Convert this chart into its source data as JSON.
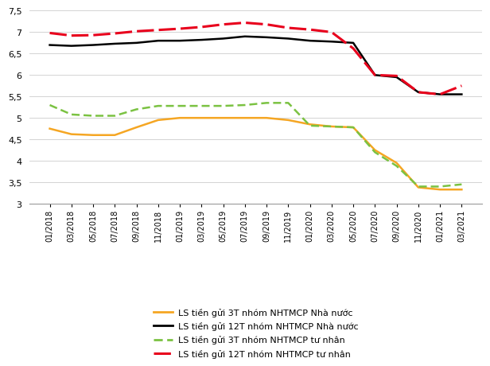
{
  "x_labels": [
    "01/2018",
    "03/2018",
    "05/2018",
    "07/2018",
    "09/2018",
    "11/2018",
    "01/2019",
    "03/2019",
    "05/2019",
    "07/2019",
    "09/2019",
    "11/2019",
    "01/2020",
    "03/2020",
    "05/2020",
    "07/2020",
    "09/2020",
    "11/2020",
    "01/2021",
    "03/2021"
  ],
  "orange_3T_state": [
    4.75,
    4.62,
    4.6,
    4.6,
    4.78,
    4.95,
    5.0,
    5.0,
    5.0,
    5.0,
    5.0,
    4.95,
    4.85,
    4.8,
    4.78,
    4.25,
    3.95,
    3.38,
    3.33,
    3.33
  ],
  "black_12T_state": [
    6.7,
    6.68,
    6.7,
    6.73,
    6.75,
    6.8,
    6.8,
    6.82,
    6.85,
    6.9,
    6.88,
    6.85,
    6.8,
    6.78,
    6.75,
    6.0,
    5.95,
    5.6,
    5.55,
    5.55
  ],
  "green_3T_private": [
    5.3,
    5.08,
    5.05,
    5.05,
    5.2,
    5.28,
    5.28,
    5.28,
    5.28,
    5.3,
    5.35,
    5.35,
    4.82,
    4.8,
    4.78,
    4.2,
    3.88,
    3.4,
    3.4,
    3.45
  ],
  "red_12T_private": [
    6.98,
    6.92,
    6.93,
    6.97,
    7.02,
    7.05,
    7.08,
    7.12,
    7.18,
    7.22,
    7.18,
    7.1,
    7.06,
    7.0,
    6.62,
    6.0,
    5.98,
    5.6,
    5.55,
    5.75
  ],
  "ylim": [
    3.0,
    7.5
  ],
  "yticks": [
    3.0,
    3.5,
    4.0,
    4.5,
    5.0,
    5.5,
    6.0,
    6.5,
    7.0,
    7.5
  ],
  "ytick_labels": [
    "3",
    "3,5",
    "4",
    "4,5",
    "5",
    "5,5",
    "6",
    "6,5",
    "7",
    "7,5"
  ],
  "legend": [
    "LS tiền gửi 3T nhóm NHTMCP Nhà nước",
    "LS tiền gửi 12T nhóm NHTMCP Nhà nước",
    "LS tiền gửi 3T nhóm NHTMCP tư nhân",
    "LS tiền gửi 12T nhóm NHTMCP tư nhân"
  ],
  "orange_color": "#F5A623",
  "black_color": "#000000",
  "green_color": "#7BC242",
  "red_color": "#E8001C",
  "bg_color": "#FFFFFF",
  "grid_color": "#CCCCCC"
}
